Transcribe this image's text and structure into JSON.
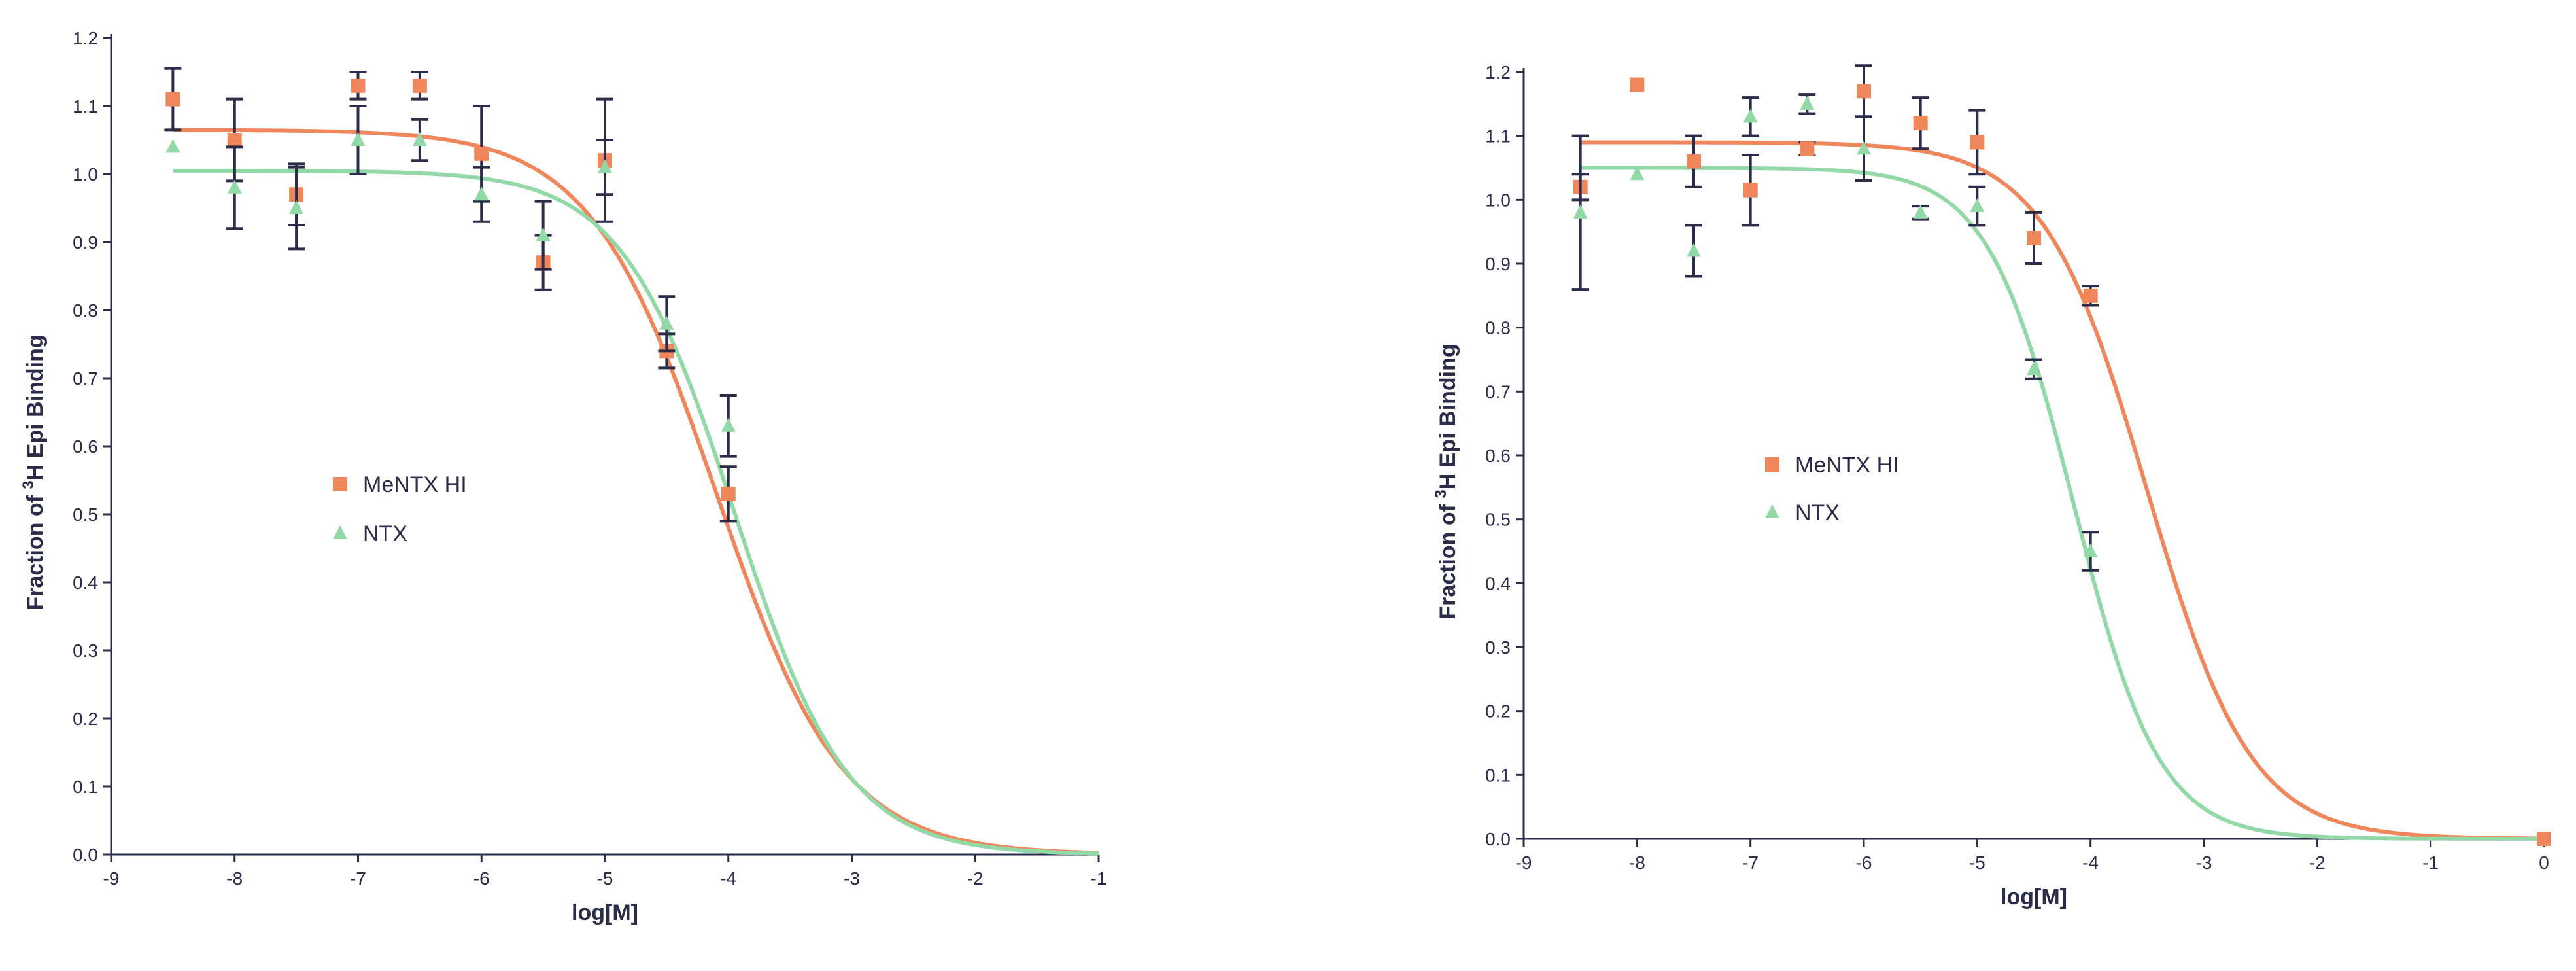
{
  "colors": {
    "axis": "#2a2c4a",
    "menetx": "#f0875c",
    "ntx": "#93d9a8",
    "errorbar": "#2a2c4a"
  },
  "chart_data": [
    {
      "type": "scatter",
      "xlabel": "log[M]",
      "ylabel_prefix": "Fraction of ",
      "ylabel_superscript": "3",
      "ylabel_suffix": "H Epi Binding",
      "xlim": [
        -9,
        -1
      ],
      "ylim": [
        0,
        1.2
      ],
      "xticks": [
        "-9",
        "-8",
        "-7",
        "-6",
        "-5",
        "-4",
        "-3",
        "-2",
        "-1"
      ],
      "yticks": [
        "0.0",
        "0.1",
        "0.2",
        "0.3",
        "0.4",
        "0.5",
        "0.6",
        "0.7",
        "0.8",
        "0.9",
        "1.0",
        "1.1",
        "1.2"
      ],
      "legend_position": "middle-left",
      "series": [
        {
          "name": "MeNTX HI",
          "marker": "square",
          "points": [
            {
              "x": -8.5,
              "y": 1.11,
              "err": 0.045
            },
            {
              "x": -8.0,
              "y": 1.05,
              "err": 0.06
            },
            {
              "x": -7.5,
              "y": 0.97,
              "err": 0.045
            },
            {
              "x": -7.0,
              "y": 1.13,
              "err": 0.02
            },
            {
              "x": -6.5,
              "y": 1.13,
              "err": 0.02
            },
            {
              "x": -6.0,
              "y": 1.03,
              "err": 0.07
            },
            {
              "x": -5.5,
              "y": 0.87,
              "err": 0.04
            },
            {
              "x": -5.0,
              "y": 1.02,
              "err": 0.09
            },
            {
              "x": -4.5,
              "y": 0.74,
              "err": 0.025
            },
            {
              "x": -4.0,
              "y": 0.53,
              "err": 0.04
            }
          ],
          "fit": {
            "top": 1.065,
            "bottom": 0.0,
            "logEC50": -4.1,
            "hill": 0.85
          }
        },
        {
          "name": "NTX",
          "marker": "triangle",
          "points": [
            {
              "x": -8.5,
              "y": 1.04,
              "err": 0.0
            },
            {
              "x": -8.0,
              "y": 0.98,
              "err": 0.06
            },
            {
              "x": -7.5,
              "y": 0.95,
              "err": 0.06
            },
            {
              "x": -7.0,
              "y": 1.05,
              "err": 0.05
            },
            {
              "x": -6.5,
              "y": 1.05,
              "err": 0.03
            },
            {
              "x": -6.0,
              "y": 0.97,
              "err": 0.04
            },
            {
              "x": -5.5,
              "y": 0.91,
              "err": 0.05
            },
            {
              "x": -5.0,
              "y": 1.01,
              "err": 0.04
            },
            {
              "x": -4.5,
              "y": 0.78,
              "err": 0.04
            },
            {
              "x": -4.0,
              "y": 0.63,
              "err": 0.045
            }
          ],
          "fit": {
            "top": 1.005,
            "bottom": 0.0,
            "logEC50": -3.95,
            "hill": 0.95
          }
        }
      ]
    },
    {
      "type": "scatter",
      "xlabel": "log[M]",
      "ylabel_prefix": "Fraction of ",
      "ylabel_superscript": "3",
      "ylabel_suffix": "H Epi Binding",
      "xlim": [
        -9,
        0
      ],
      "ylim": [
        0,
        1.2
      ],
      "xticks": [
        "-9",
        "-8",
        "-7",
        "-6",
        "-5",
        "-4",
        "-3",
        "-2",
        "-1",
        "0"
      ],
      "yticks": [
        "0.0",
        "0.1",
        "0.2",
        "0.3",
        "0.4",
        "0.5",
        "0.6",
        "0.7",
        "0.8",
        "0.9",
        "1.0",
        "1.1",
        "1.2"
      ],
      "legend_position": "middle-left",
      "series": [
        {
          "name": "MeNTX HI",
          "marker": "square",
          "points": [
            {
              "x": -8.5,
              "y": 1.02,
              "err": 0.02
            },
            {
              "x": -8.0,
              "y": 1.18,
              "err": 0.0
            },
            {
              "x": -7.5,
              "y": 1.06,
              "err": 0.04
            },
            {
              "x": -7.0,
              "y": 1.015,
              "err": 0.055
            },
            {
              "x": -6.5,
              "y": 1.08,
              "err": 0.01
            },
            {
              "x": -6.0,
              "y": 1.17,
              "err": 0.04
            },
            {
              "x": -5.5,
              "y": 1.12,
              "err": 0.04
            },
            {
              "x": -5.0,
              "y": 1.09,
              "err": 0.05
            },
            {
              "x": -4.5,
              "y": 0.94,
              "err": 0.04
            },
            {
              "x": -4.0,
              "y": 0.85,
              "err": 0.015
            },
            {
              "x": 0.0,
              "y": 0.0,
              "err": 0.0
            }
          ],
          "fit": {
            "top": 1.09,
            "bottom": 0.0,
            "logEC50": -3.5,
            "hill": 0.95
          }
        },
        {
          "name": "NTX",
          "marker": "triangle",
          "points": [
            {
              "x": -8.5,
              "y": 0.98,
              "err": 0.12
            },
            {
              "x": -8.0,
              "y": 1.04,
              "err": 0.0
            },
            {
              "x": -7.5,
              "y": 0.92,
              "err": 0.04
            },
            {
              "x": -7.0,
              "y": 1.13,
              "err": 0.03
            },
            {
              "x": -6.5,
              "y": 1.15,
              "err": 0.015
            },
            {
              "x": -6.0,
              "y": 1.08,
              "err": 0.05
            },
            {
              "x": -5.5,
              "y": 0.98,
              "err": 0.01
            },
            {
              "x": -5.0,
              "y": 0.99,
              "err": 0.03
            },
            {
              "x": -4.5,
              "y": 0.735,
              "err": 0.015
            },
            {
              "x": -4.0,
              "y": 0.45,
              "err": 0.03
            }
          ],
          "fit": {
            "top": 1.05,
            "bottom": 0.0,
            "logEC50": -4.15,
            "hill": 1.15
          }
        }
      ]
    }
  ]
}
